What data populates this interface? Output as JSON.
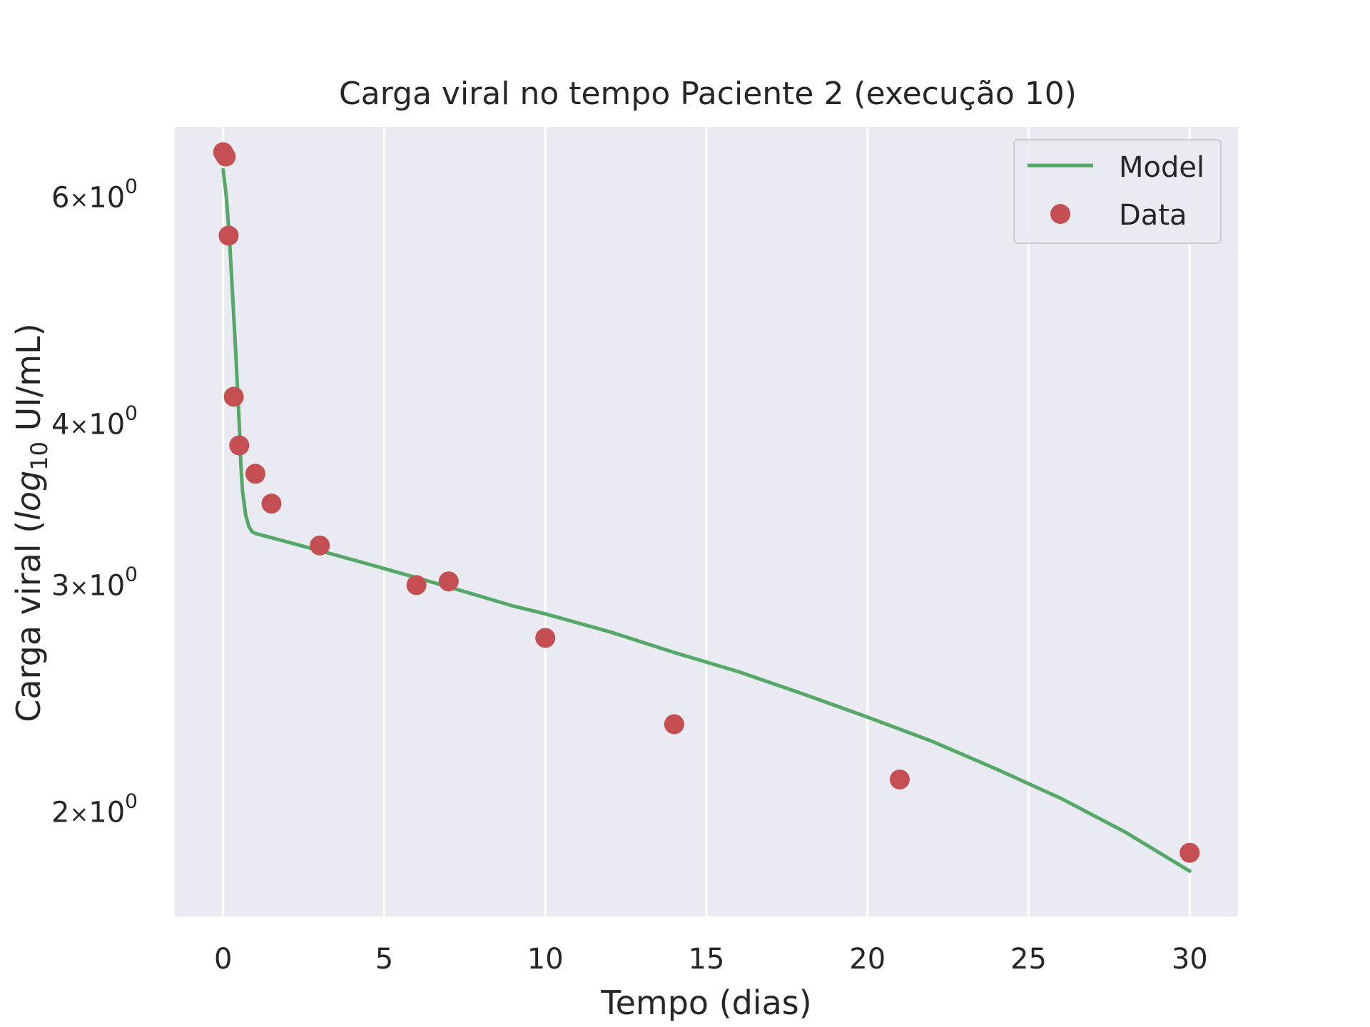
{
  "chart_data": {
    "type": "scatter",
    "title": "Carga viral no tempo Paciente 2 (execução 10)",
    "xlabel": "Tempo (dias)",
    "ylabel": {
      "prefix": "Carga viral (",
      "italic": "log",
      "subscript": "10",
      "suffix": " UI/mL)"
    },
    "x_scale": "linear",
    "y_scale": "log",
    "xlim": [
      -1.5,
      31.5
    ],
    "ylim": [
      1.66,
      6.8
    ],
    "grid": true,
    "x_ticks": [
      {
        "value": 0,
        "label": "0"
      },
      {
        "value": 5,
        "label": "5"
      },
      {
        "value": 10,
        "label": "10"
      },
      {
        "value": 15,
        "label": "15"
      },
      {
        "value": 20,
        "label": "20"
      },
      {
        "value": 25,
        "label": "25"
      },
      {
        "value": 30,
        "label": "30"
      }
    ],
    "y_ticks": [
      {
        "value": 2,
        "base": "2",
        "mult": "×",
        "ten": "10",
        "exp": "0"
      },
      {
        "value": 3,
        "base": "3",
        "mult": "×",
        "ten": "10",
        "exp": "0"
      },
      {
        "value": 4,
        "base": "4",
        "mult": "×",
        "ten": "10",
        "exp": "0"
      },
      {
        "value": 6,
        "base": "6",
        "mult": "×",
        "ten": "10",
        "exp": "0"
      }
    ],
    "legend": {
      "placement": "top-right",
      "entries": [
        "Model",
        "Data"
      ]
    },
    "colors": {
      "model": "#55a868",
      "data": "#c44e52",
      "plot_background": "#eaeaf2",
      "grid": "#ffffff",
      "text": "#262626"
    },
    "series": [
      {
        "name": "Model",
        "kind": "line",
        "x": [
          0,
          0.1,
          0.2,
          0.3,
          0.4,
          0.5,
          0.55,
          0.6,
          0.7,
          0.8,
          0.9,
          1.0,
          2,
          3,
          4,
          5,
          6,
          7,
          8,
          9,
          10,
          12,
          14,
          16,
          18,
          20,
          22,
          24,
          26,
          28,
          30
        ],
        "y": [
          6.3,
          6.0,
          5.55,
          5.0,
          4.5,
          4.0,
          3.72,
          3.55,
          3.4,
          3.33,
          3.3,
          3.29,
          3.24,
          3.19,
          3.14,
          3.09,
          3.04,
          2.99,
          2.94,
          2.89,
          2.85,
          2.76,
          2.66,
          2.57,
          2.47,
          2.37,
          2.27,
          2.16,
          2.05,
          1.93,
          1.8
        ]
      },
      {
        "name": "Data",
        "kind": "scatter",
        "x": [
          0,
          0.08,
          0.17,
          0.33,
          0.5,
          1.0,
          1.5,
          3,
          6,
          7,
          10,
          14,
          21,
          30
        ],
        "y": [
          6.5,
          6.45,
          5.6,
          4.2,
          3.85,
          3.66,
          3.47,
          3.22,
          3.0,
          3.02,
          2.73,
          2.34,
          2.12,
          1.86
        ]
      }
    ]
  }
}
